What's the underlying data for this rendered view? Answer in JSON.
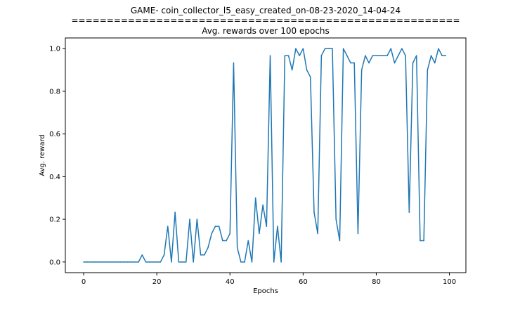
{
  "chart_data": {
    "type": "line",
    "title_lines": [
      "GAME- coin_collector_l5_easy_created_on-08-23-2020_14-04-24",
      "=======================================================",
      "Avg. rewards over 100 epochs"
    ],
    "xlabel": "Epochs",
    "ylabel": "Avg. reward",
    "xlim": [
      -5,
      104.5
    ],
    "ylim": [
      -0.05,
      1.05
    ],
    "xticks": [
      0,
      20,
      40,
      60,
      80,
      100
    ],
    "yticks": [
      0.0,
      0.2,
      0.4,
      0.6,
      0.8,
      1.0
    ],
    "ytick_labels": [
      "0.0",
      "0.2",
      "0.4",
      "0.6",
      "0.8",
      "1.0"
    ],
    "grid": false,
    "line_color": "#1f77b4",
    "series": [
      {
        "x": [
          0,
          1,
          2,
          3,
          4,
          5,
          6,
          7,
          8,
          9,
          10,
          11,
          12,
          13,
          14,
          15,
          16,
          17,
          18,
          19,
          20,
          21,
          22,
          23,
          24,
          25,
          26,
          27,
          28,
          29,
          30,
          31,
          32,
          33,
          34,
          35,
          36,
          37,
          38,
          39,
          40,
          41,
          42,
          43,
          44,
          45,
          46,
          47,
          48,
          49,
          50,
          51,
          52,
          53,
          54,
          55,
          56,
          57,
          58,
          59,
          60,
          61,
          62,
          63,
          64,
          65,
          66,
          67,
          68,
          69,
          70,
          71,
          72,
          73,
          74,
          75,
          76,
          77,
          78,
          79,
          80,
          81,
          82,
          83,
          84,
          85,
          86,
          87,
          88,
          89,
          90,
          91,
          92,
          93,
          94,
          95,
          96,
          97,
          98,
          99
        ],
        "values": [
          0,
          0,
          0,
          0,
          0,
          0,
          0,
          0,
          0,
          0,
          0,
          0,
          0,
          0,
          0,
          0,
          0.033,
          0,
          0,
          0,
          0,
          0,
          0.033,
          0.167,
          0,
          0.233,
          0,
          0,
          0,
          0.2,
          0,
          0.2,
          0.033,
          0.033,
          0.067,
          0.133,
          0.167,
          0.167,
          0.1,
          0.1,
          0.133,
          0.933,
          0.067,
          0,
          0,
          0.1,
          0,
          0.3,
          0.133,
          0.267,
          0.167,
          0.967,
          0,
          0.167,
          0,
          0.967,
          0.967,
          0.9,
          1.0,
          0.967,
          1.0,
          0.9,
          0.867,
          0.233,
          0.133,
          0.967,
          1.0,
          1.0,
          1.0,
          0.2,
          0.1,
          1.0,
          0.967,
          0.933,
          0.933,
          0.133,
          0.9,
          0.967,
          0.933,
          0.967,
          0.967,
          0.967,
          0.967,
          0.967,
          1.0,
          0.933,
          0.967,
          1.0,
          0.967,
          0.233,
          0.933,
          0.967,
          0.1,
          0.1,
          0.9,
          0.967,
          0.933,
          1.0,
          0.967,
          0.967
        ]
      }
    ]
  }
}
